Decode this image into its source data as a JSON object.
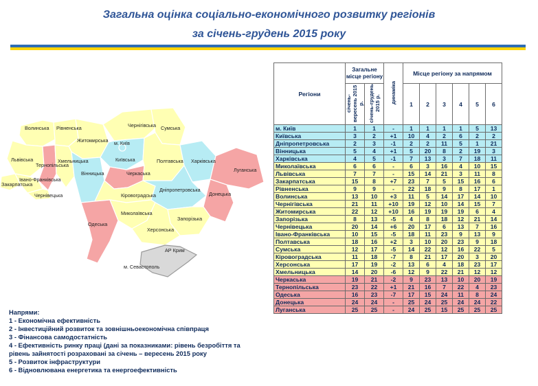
{
  "title_line1": "Загальна оцінка соціально-економічного розвитку регіонів",
  "title_line2": "за січень-грудень 2015 року",
  "colors": {
    "blue_group": "#b7ecf4",
    "yellow_group": "#ffffb3",
    "red_group": "#f5a5a5",
    "title": "#2f5597",
    "flag_blue": "#2e6db4",
    "flag_yellow": "#ffd400"
  },
  "map": {
    "labels": {
      "volynska": "Волинська",
      "rivnenska": "Рівненська",
      "zhytomyrska": "Житомирська",
      "chernihivska": "Чернігівська",
      "sumska": "Сумська",
      "lvivska": "Львівська",
      "ternopilska": "Тернопільська",
      "khmelnytska": "Хмельницька",
      "kyivska": "Київська",
      "kyiv": "м. Київ",
      "poltavska": "Полтавська",
      "kharkivska": "Харківська",
      "luhanska": "Луганська",
      "zakarpatska": "Закарпатська",
      "ivano": "Івано-Франківська",
      "chernivetska": "Чернівецька",
      "vinnytska": "Вінницька",
      "cherkaska": "Черкаська",
      "kirovohradska": "Кіровоградська",
      "dnipropetrovska": "Дніпропетровська",
      "donetska": "Донецька",
      "mykolaivska": "Миколаївська",
      "zaporizka": "Запорізька",
      "odeska": "Одеська",
      "khersonska": "Херсонська",
      "crimea": "АР Крим",
      "sevastopol": "м. Севастополь"
    }
  },
  "legend": {
    "title": "Напрями:",
    "items": [
      "1 - Економічна ефективність",
      "2 - Інвестиційний розвиток та зовнішньоекономічна співпраця",
      "3 - Фінансова самодостатність",
      "4 - Ефективність ринку праці (дані за показниками: рівень безробіття та",
      "рівень зайнятості розраховані за січень – вересень 2015 року",
      "5 - Розвиток інфраструктури",
      "6 - Відновлювана енергетика та енергоефективність"
    ]
  },
  "table": {
    "col_regions": "Регіони",
    "col_overall": "Загальне місце регіону",
    "col_period1": "січень-вересень 2015 р.",
    "col_period2": "січень-грудень 2015 р.",
    "col_dynamic": "динаміка",
    "col_directions": "Місце регіону за напрямом",
    "direction_numbers": [
      "1",
      "2",
      "3",
      "4",
      "5",
      "6"
    ],
    "rows": [
      {
        "group": "first",
        "name": "м. Київ",
        "p1": "1",
        "p2": "1",
        "dyn": "-",
        "d": [
          "1",
          "1",
          "1",
          "1",
          "5",
          "13"
        ]
      },
      {
        "group": "blue",
        "name": "Київська",
        "p1": "3",
        "p2": "2",
        "dyn": "+1",
        "d": [
          "10",
          "4",
          "2",
          "6",
          "2",
          "2"
        ]
      },
      {
        "group": "blue",
        "name": "Дніпропетровська",
        "p1": "2",
        "p2": "3",
        "dyn": "-1",
        "d": [
          "2",
          "2",
          "11",
          "5",
          "1",
          "21"
        ]
      },
      {
        "group": "blue",
        "name": "Вінницька",
        "p1": "5",
        "p2": "4",
        "dyn": "+1",
        "d": [
          "5",
          "20",
          "8",
          "2",
          "19",
          "3"
        ]
      },
      {
        "group": "blue",
        "name": "Харківська",
        "p1": "4",
        "p2": "5",
        "dyn": "-1",
        "d": [
          "7",
          "13",
          "3",
          "7",
          "18",
          "11"
        ]
      },
      {
        "group": "yellow",
        "name": "Миколаївська",
        "p1": "6",
        "p2": "6",
        "dyn": "-",
        "d": [
          "6",
          "3",
          "16",
          "4",
          "10",
          "15"
        ]
      },
      {
        "group": "yellow",
        "name": "Львівська",
        "p1": "7",
        "p2": "7",
        "dyn": "-",
        "d": [
          "15",
          "14",
          "21",
          "3",
          "11",
          "8"
        ]
      },
      {
        "group": "yellow",
        "name": "Закарпатська",
        "p1": "15",
        "p2": "8",
        "dyn": "+7",
        "d": [
          "23",
          "7",
          "5",
          "15",
          "16",
          "6"
        ]
      },
      {
        "group": "yellow",
        "name": "Рівненська",
        "p1": "9",
        "p2": "9",
        "dyn": "-",
        "d": [
          "22",
          "18",
          "9",
          "8",
          "17",
          "1"
        ]
      },
      {
        "group": "yellow",
        "name": "Волинська",
        "p1": "13",
        "p2": "10",
        "dyn": "+3",
        "d": [
          "11",
          "5",
          "14",
          "17",
          "14",
          "10"
        ]
      },
      {
        "group": "yellow",
        "name": "Чернігівська",
        "p1": "21",
        "p2": "11",
        "dyn": "+10",
        "d": [
          "19",
          "12",
          "10",
          "14",
          "15",
          "7"
        ]
      },
      {
        "group": "yellow",
        "name": "Житомирська",
        "p1": "22",
        "p2": "12",
        "dyn": "+10",
        "d": [
          "16",
          "19",
          "19",
          "19",
          "6",
          "4"
        ]
      },
      {
        "group": "yellow",
        "name": "Запорізька",
        "p1": "8",
        "p2": "13",
        "dyn": "-5",
        "d": [
          "4",
          "8",
          "18",
          "12",
          "21",
          "14"
        ]
      },
      {
        "group": "yellow",
        "name": "Чернівецька",
        "p1": "20",
        "p2": "14",
        "dyn": "+6",
        "d": [
          "20",
          "17",
          "6",
          "13",
          "7",
          "16"
        ]
      },
      {
        "group": "yellow",
        "name": "Івано-Франківська",
        "p1": "10",
        "p2": "15",
        "dyn": "-5",
        "d": [
          "18",
          "11",
          "23",
          "9",
          "13",
          "9"
        ]
      },
      {
        "group": "yellow",
        "name": "Полтавська",
        "p1": "18",
        "p2": "16",
        "dyn": "+2",
        "d": [
          "3",
          "10",
          "20",
          "23",
          "9",
          "18"
        ]
      },
      {
        "group": "yellow",
        "name": "Сумська",
        "p1": "12",
        "p2": "17",
        "dyn": "-5",
        "d": [
          "14",
          "22",
          "12",
          "16",
          "22",
          "5"
        ]
      },
      {
        "group": "yellow",
        "name": "Кіровоградська",
        "p1": "11",
        "p2": "18",
        "dyn": "-7",
        "d": [
          "8",
          "21",
          "17",
          "20",
          "3",
          "20"
        ]
      },
      {
        "group": "yellow",
        "name": "Херсонська",
        "p1": "17",
        "p2": "19",
        "dyn": "-2",
        "d": [
          "13",
          "6",
          "4",
          "18",
          "23",
          "17"
        ]
      },
      {
        "group": "yellow",
        "name": "Хмельницька",
        "p1": "14",
        "p2": "20",
        "dyn": "-6",
        "d": [
          "12",
          "9",
          "22",
          "21",
          "12",
          "12"
        ]
      },
      {
        "group": "red",
        "name": "Черкаська",
        "p1": "19",
        "p2": "21",
        "dyn": "-2",
        "d": [
          "9",
          "23",
          "13",
          "10",
          "20",
          "19"
        ]
      },
      {
        "group": "red",
        "name": "Тернопільська",
        "p1": "23",
        "p2": "22",
        "dyn": "+1",
        "d": [
          "21",
          "16",
          "7",
          "22",
          "4",
          "23"
        ]
      },
      {
        "group": "red",
        "name": "Одеська",
        "p1": "16",
        "p2": "23",
        "dyn": "-7",
        "d": [
          "17",
          "15",
          "24",
          "11",
          "8",
          "24"
        ]
      },
      {
        "group": "red",
        "name": "Донецька",
        "p1": "24",
        "p2": "24",
        "dyn": "-",
        "d": [
          "25",
          "24",
          "25",
          "24",
          "24",
          "22"
        ]
      },
      {
        "group": "red",
        "name": "Луганська",
        "p1": "25",
        "p2": "25",
        "dyn": "-",
        "d": [
          "24",
          "25",
          "15",
          "25",
          "25",
          "25"
        ]
      }
    ]
  }
}
